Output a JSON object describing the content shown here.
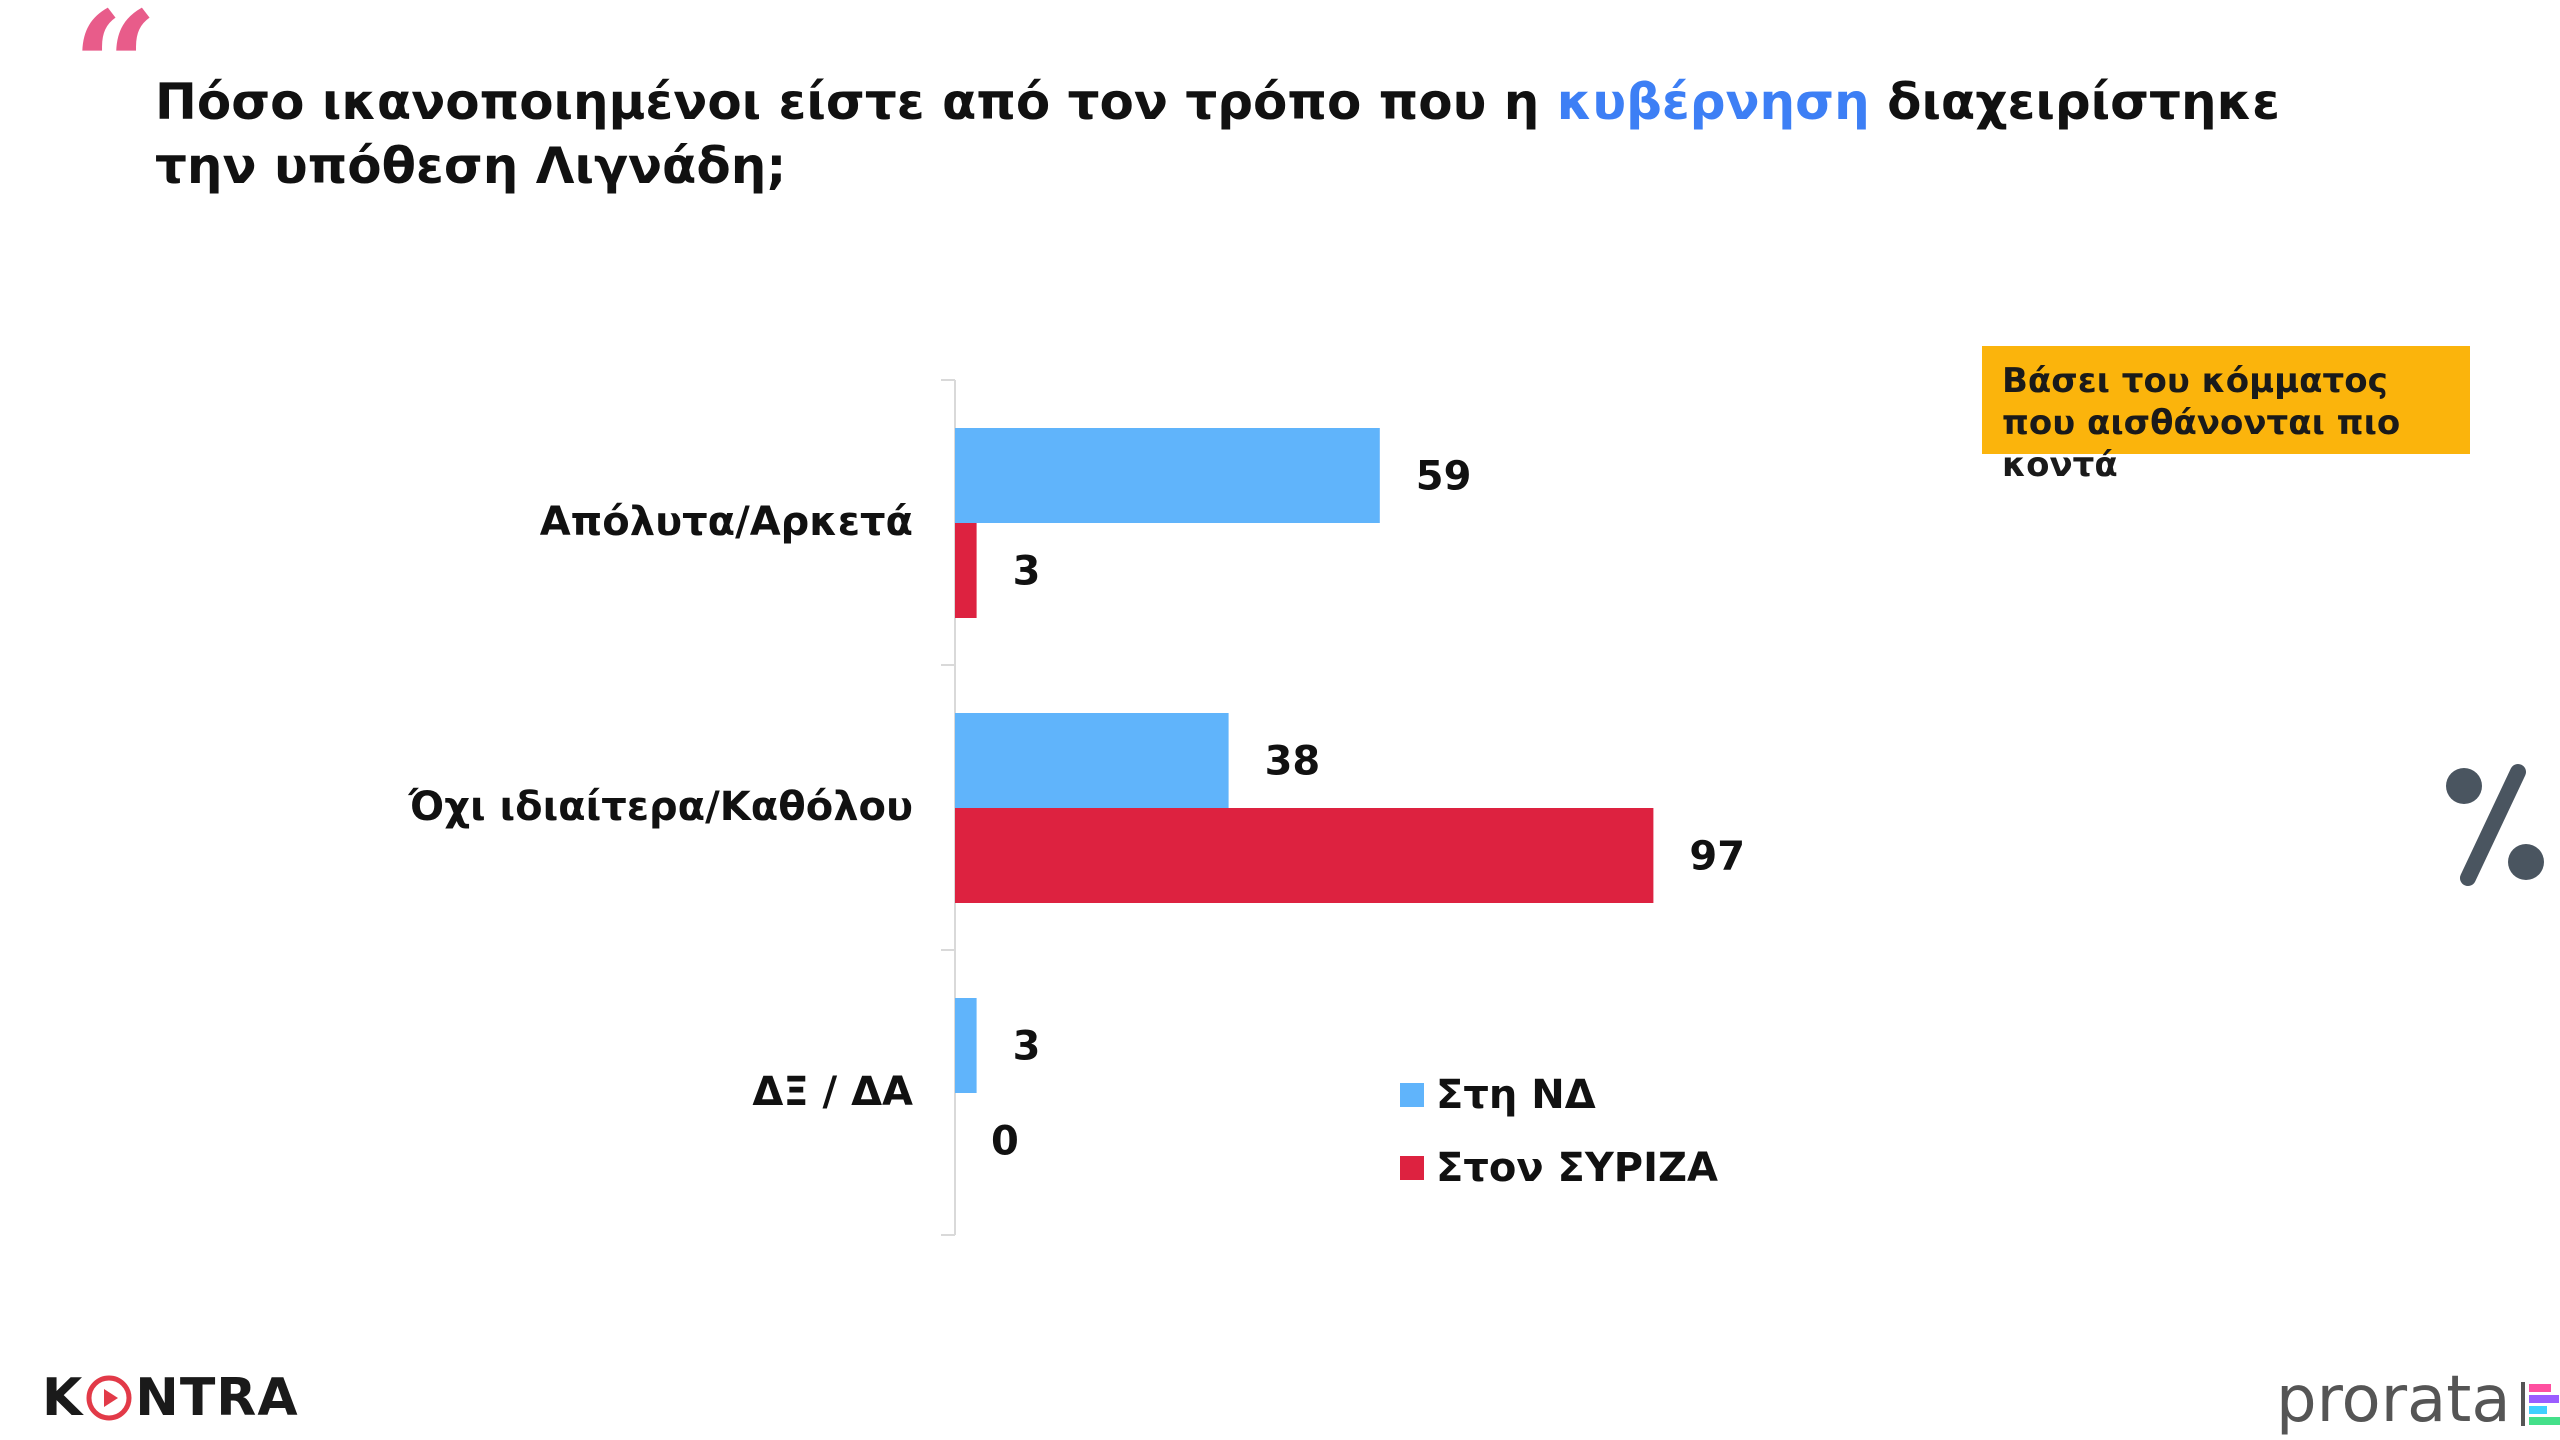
{
  "header": {
    "title_part1": "Πόσο ικανοποιημένοι είστε από τον τρόπο που η ",
    "title_highlight": "κυβέρνηση",
    "title_part2": " διαχειρίστηκε την υπόθεση Λιγνάδη;"
  },
  "callout": {
    "text": "Βάσει του κόμματος που αισθάνονται πιο κοντά"
  },
  "percent_symbol": "%",
  "legend": [
    {
      "label": "Στη ΝΔ",
      "color": "#60b4fb"
    },
    {
      "label": "Στον ΣΥΡΙΖΑ",
      "color": "#dd2240"
    }
  ],
  "chart_data": {
    "type": "bar",
    "orientation": "horizontal",
    "categories": [
      "Απόλυτα/Αρκετά",
      "Όχι ιδιαίτερα/Καθόλου",
      "ΔΞ / ΔΑ"
    ],
    "series": [
      {
        "name": "Στη ΝΔ",
        "values": [
          59,
          38,
          3
        ],
        "color": "#60b4fb"
      },
      {
        "name": "Στον ΣΥΡΙΖΑ",
        "values": [
          3,
          97,
          0
        ],
        "color": "#dd2240"
      }
    ],
    "xlim": [
      0,
      100
    ],
    "grid": false,
    "legend_position": "bottom-center"
  },
  "footer": {
    "left_logo": "KONTRA",
    "right_logo": "prorata"
  },
  "colors": {
    "quote_mark": "#e85c8a",
    "title_highlight": "#3d7ff5",
    "callout_bg": "#fbb40c",
    "percent_icon": "#4a5560",
    "kontra_accent": "#e23a48"
  }
}
